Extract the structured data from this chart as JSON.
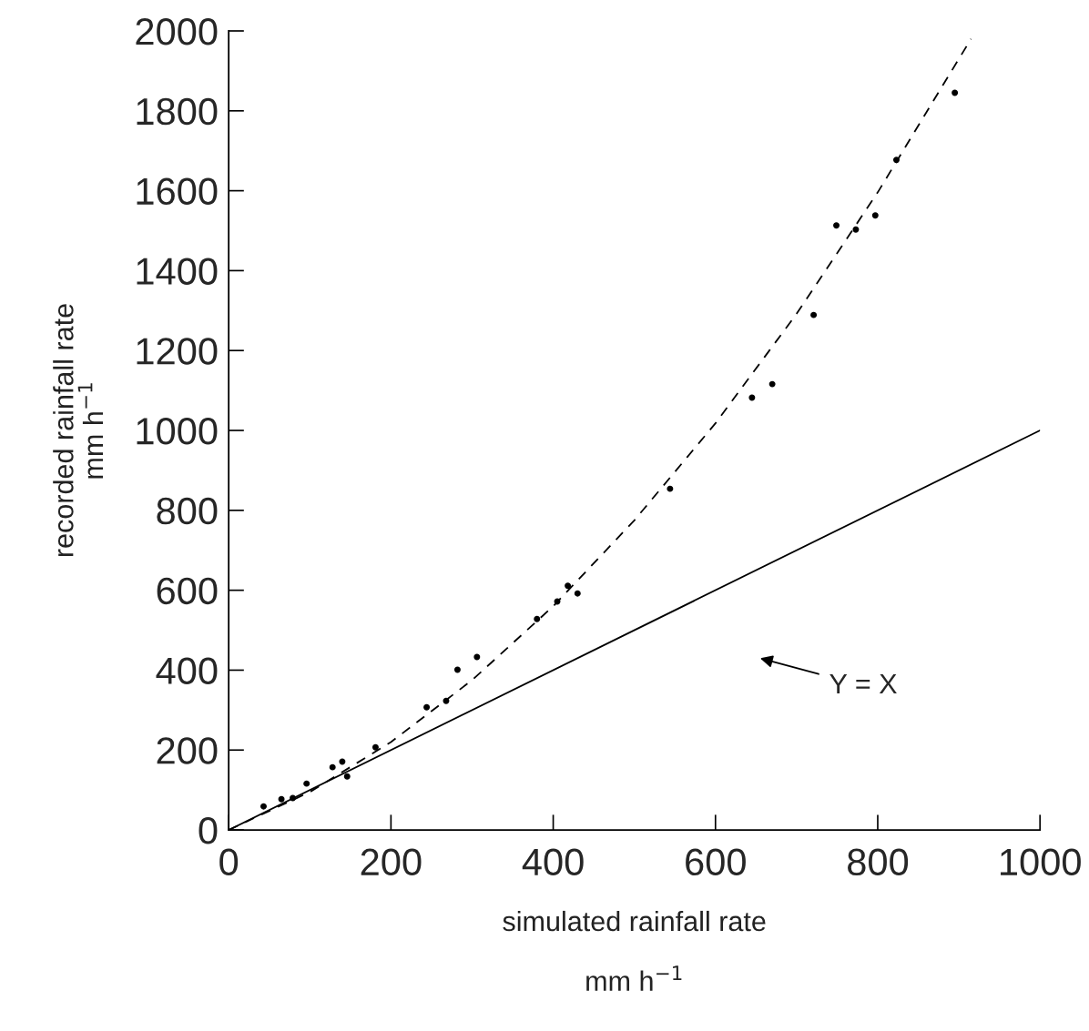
{
  "chart_data": {
    "type": "scatter",
    "xlabel": "simulated rainfall rate\n\nmm h$^{−1}$",
    "ylabel": "recorded rainfall rate\nmm h$^{−1}$",
    "xlim": [
      0,
      1000
    ],
    "ylim": [
      0,
      2000
    ],
    "xticks": [
      0,
      200,
      400,
      600,
      800,
      1000
    ],
    "yticks": [
      0,
      200,
      400,
      600,
      800,
      1000,
      1200,
      1400,
      1600,
      1800,
      2000
    ],
    "grid": false,
    "legend": false,
    "series": [
      {
        "type": "scatter",
        "color": "#000000",
        "marker": "circle",
        "x": [
          43,
          65,
          79,
          96,
          128,
          140,
          146,
          181,
          244,
          268,
          282,
          306,
          380,
          405,
          418,
          430,
          544,
          645,
          670,
          721,
          749,
          773,
          797,
          823,
          895
        ],
        "values": [
          59,
          77,
          80,
          116,
          157,
          171,
          134,
          207,
          307,
          323,
          401,
          433,
          528,
          572,
          611,
          592,
          854,
          1082,
          1116,
          1289,
          1513,
          1503,
          1538,
          1677,
          1845
        ]
      },
      {
        "type": "line",
        "color": "#000000",
        "line_style": "dashed",
        "marker": "none",
        "x": [
          0,
          100,
          200,
          300,
          400,
          500,
          600,
          700,
          800,
          915
        ],
        "values": [
          0,
          95,
          220,
          375,
          560,
          775,
          1018,
          1292,
          1596,
          1980
        ]
      },
      {
        "type": "line",
        "color": "#000000",
        "line_style": "solid",
        "marker": "none",
        "x": [
          0,
          1000
        ],
        "values": [
          0,
          1000
        ]
      }
    ],
    "annotations": [
      "Y = X"
    ]
  }
}
